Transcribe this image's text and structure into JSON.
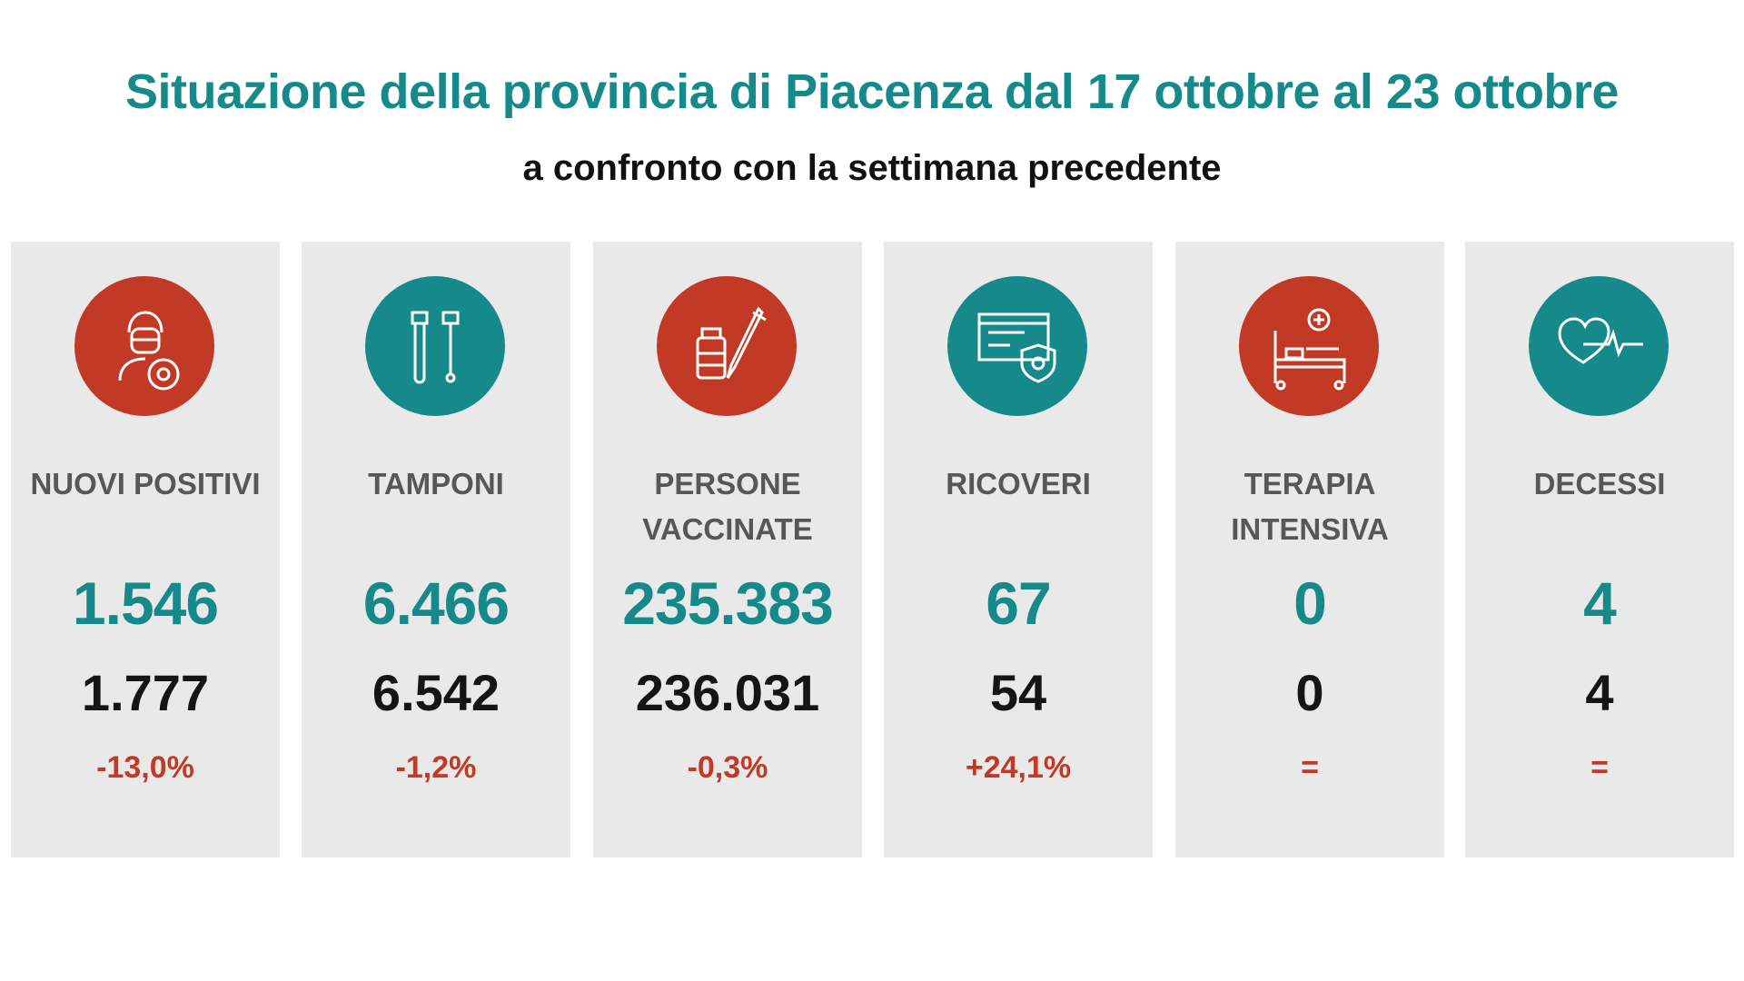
{
  "header": {
    "title": "Situazione della provincia di Piacenza dal 17 ottobre al 23 ottobre",
    "subtitle": "a confronto con la settimana precedente"
  },
  "colors": {
    "teal": "#16898a",
    "red": "#c23a25",
    "card": "#e9e9e9"
  },
  "cards": [
    {
      "label": "NUOVI POSITIVI",
      "icon": "masked-person-virus-icon",
      "icon_color": "red",
      "value": "1.546",
      "previous": "1.777",
      "change": "-13,0%"
    },
    {
      "label": "TAMPONI",
      "icon": "test-tube-swab-icon",
      "icon_color": "teal",
      "value": "6.466",
      "previous": "6.542",
      "change": "-1,2%"
    },
    {
      "label": "PERSONE VACCINATE",
      "icon": "vaccine-vial-syringe-icon",
      "icon_color": "red",
      "value": "235.383",
      "previous": "236.031",
      "change": "-0,3%"
    },
    {
      "label": "RICOVERI",
      "icon": "hospital-shield-icon",
      "icon_color": "teal",
      "value": "67",
      "previous": "54",
      "change": "+24,1%"
    },
    {
      "label": "TERAPIA INTENSIVA",
      "icon": "hospital-bed-icon",
      "icon_color": "red",
      "value": "0",
      "previous": "0",
      "change": "="
    },
    {
      "label": "DECESSI",
      "icon": "heart-pulse-icon",
      "icon_color": "teal",
      "value": "4",
      "previous": "4",
      "change": "="
    }
  ]
}
